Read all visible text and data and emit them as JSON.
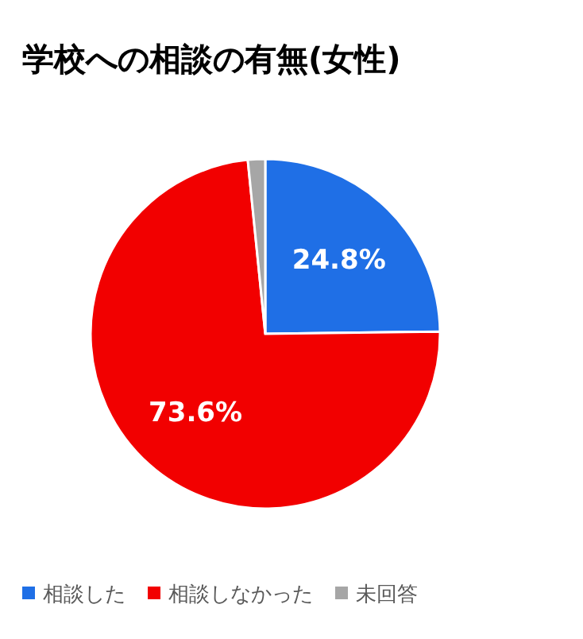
{
  "chart_data": {
    "type": "pie",
    "title": "学校への相談の有無(女性)",
    "categories": [
      "相談した",
      "相談しなかった",
      "未回答"
    ],
    "values": [
      24.8,
      73.6,
      1.6
    ],
    "value_labels": [
      "24.8%",
      "73.6%",
      null
    ],
    "colors": [
      "#1f6fe6",
      "#f20000",
      "#a6a6a6"
    ],
    "legend": "bottom"
  }
}
